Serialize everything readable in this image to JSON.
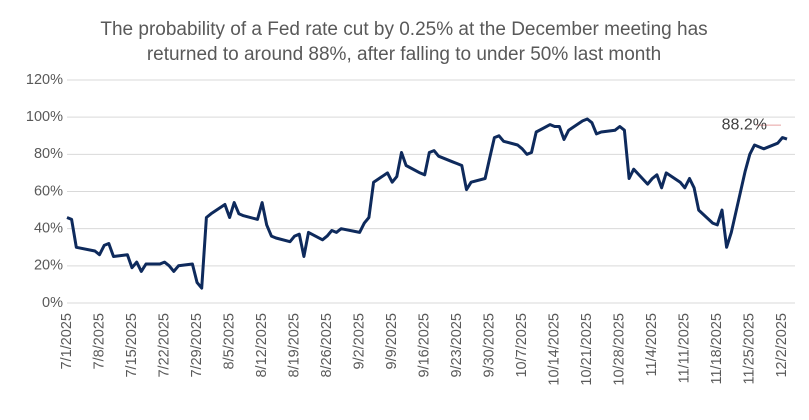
{
  "chart_data": {
    "type": "line",
    "title": [
      "The probability of a Fed rate cut by 0.25% at the December meeting has",
      "returned to around 88%, after falling to under 50% last month"
    ],
    "x": [
      "7/1/2025",
      "7/2/2025",
      "7/3/2025",
      "7/7/2025",
      "7/8/2025",
      "7/9/2025",
      "7/10/2025",
      "7/11/2025",
      "7/14/2025",
      "7/15/2025",
      "7/16/2025",
      "7/17/2025",
      "7/18/2025",
      "7/21/2025",
      "7/22/2025",
      "7/23/2025",
      "7/24/2025",
      "7/25/2025",
      "7/28/2025",
      "7/29/2025",
      "7/30/2025",
      "7/31/2025",
      "8/1/2025",
      "8/4/2025",
      "8/5/2025",
      "8/6/2025",
      "8/7/2025",
      "8/8/2025",
      "8/11/2025",
      "8/12/2025",
      "8/13/2025",
      "8/14/2025",
      "8/15/2025",
      "8/18/2025",
      "8/19/2025",
      "8/20/2025",
      "8/21/2025",
      "8/22/2025",
      "8/25/2025",
      "8/26/2025",
      "8/27/2025",
      "8/28/2025",
      "8/29/2025",
      "9/2/2025",
      "9/3/2025",
      "9/4/2025",
      "9/5/2025",
      "9/8/2025",
      "9/9/2025",
      "9/10/2025",
      "9/11/2025",
      "9/12/2025",
      "9/15/2025",
      "9/16/2025",
      "9/17/2025",
      "9/18/2025",
      "9/19/2025",
      "9/22/2025",
      "9/23/2025",
      "9/24/2025",
      "9/25/2025",
      "9/26/2025",
      "9/29/2025",
      "9/30/2025",
      "10/1/2025",
      "10/2/2025",
      "10/3/2025",
      "10/6/2025",
      "10/7/2025",
      "10/8/2025",
      "10/9/2025",
      "10/10/2025",
      "10/13/2025",
      "10/14/2025",
      "10/15/2025",
      "10/16/2025",
      "10/17/2025",
      "10/20/2025",
      "10/21/2025",
      "10/22/2025",
      "10/23/2025",
      "10/24/2025",
      "10/27/2025",
      "10/28/2025",
      "10/29/2025",
      "10/30/2025",
      "10/31/2025",
      "11/3/2025",
      "11/4/2025",
      "11/5/2025",
      "11/6/2025",
      "11/7/2025",
      "11/10/2025",
      "11/11/2025",
      "11/12/2025",
      "11/13/2025",
      "11/14/2025",
      "11/17/2025",
      "11/18/2025",
      "11/19/2025",
      "11/20/2025",
      "11/21/2025",
      "11/24/2025",
      "11/25/2025",
      "11/26/2025",
      "11/28/2025",
      "12/1/2025",
      "12/2/2025",
      "12/3/2025"
    ],
    "series": [
      {
        "color": "#0e2a5c",
        "values": [
          46,
          45,
          30,
          28,
          26,
          31,
          32,
          25,
          26,
          19,
          22,
          17,
          21,
          21,
          22,
          20,
          17,
          20,
          21,
          11,
          8,
          46,
          48,
          53,
          46,
          54,
          48,
          47,
          45,
          54,
          42,
          36,
          35,
          33,
          36,
          37,
          25,
          38,
          34,
          36,
          39,
          38,
          40,
          38,
          43,
          46,
          65,
          70,
          65,
          68,
          81,
          74,
          70,
          69,
          81,
          82,
          79,
          76,
          75,
          74,
          61,
          65,
          67,
          78,
          89,
          90,
          87,
          85,
          83,
          80,
          81,
          92,
          96,
          95,
          95,
          88,
          93,
          98,
          99,
          97,
          91,
          92,
          93,
          95,
          93,
          67,
          72,
          64,
          67,
          69,
          62,
          70,
          65,
          62,
          67,
          62,
          50,
          43,
          42,
          50,
          30,
          38,
          71,
          80,
          85,
          83,
          86,
          89,
          88.2
        ],
        "value_labels": [
          null,
          null,
          null,
          null,
          null,
          null,
          null,
          null,
          null,
          null,
          null,
          null,
          null,
          null,
          null,
          null,
          null,
          null,
          null,
          null,
          null,
          null,
          null,
          null,
          null,
          null,
          null,
          null,
          null,
          null,
          null,
          null,
          null,
          null,
          null,
          null,
          null,
          null,
          null,
          null,
          null,
          null,
          null,
          null,
          null,
          null,
          null,
          null,
          null,
          null,
          null,
          null,
          null,
          null,
          null,
          null,
          null,
          null,
          null,
          null,
          null,
          null,
          null,
          null,
          null,
          null,
          null,
          null,
          null,
          null,
          null,
          null,
          null,
          null,
          null,
          null,
          null,
          null,
          null,
          null,
          null,
          null,
          null,
          null,
          null,
          null,
          null,
          null,
          null,
          null,
          null,
          null,
          null,
          null,
          null,
          null,
          null,
          null,
          null,
          null,
          null,
          null,
          null,
          null,
          null,
          null,
          null,
          null,
          "88.2%"
        ]
      }
    ],
    "xlim": [
      "7/1/2025",
      "12/3/2025"
    ],
    "xticks": [
      "7/1/2025",
      "7/8/2025",
      "7/15/2025",
      "7/22/2025",
      "7/29/2025",
      "8/5/2025",
      "8/12/2025",
      "8/19/2025",
      "8/26/2025",
      "9/2/2025",
      "9/9/2025",
      "9/16/2025",
      "9/23/2025",
      "9/30/2025",
      "10/7/2025",
      "10/14/2025",
      "10/21/2025",
      "10/28/2025",
      "11/4/2025",
      "11/11/2025",
      "11/18/2025",
      "11/25/2025",
      "12/2/2025"
    ],
    "ylim": [
      0,
      120
    ],
    "yticks": [
      {
        "value": 0,
        "label": "0%"
      },
      {
        "value": 20,
        "label": "20%"
      },
      {
        "value": 40,
        "label": "40%"
      },
      {
        "value": 60,
        "label": "60%"
      },
      {
        "value": 80,
        "label": "80%"
      },
      {
        "value": 100,
        "label": "100%"
      },
      {
        "value": 120,
        "label": "120%"
      }
    ],
    "grid": true
  }
}
